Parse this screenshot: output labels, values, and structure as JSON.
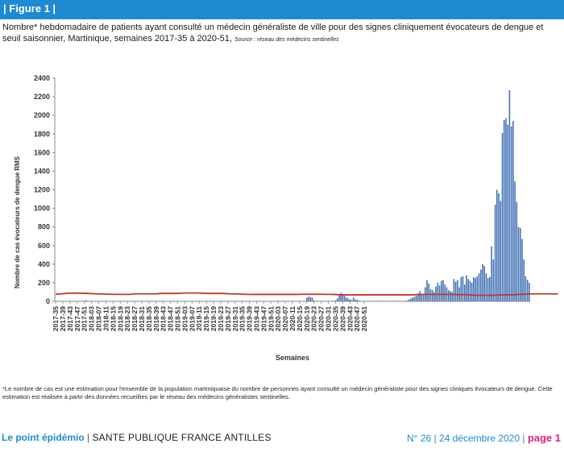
{
  "banner": {
    "label": "| Figure 1 |"
  },
  "caption": {
    "text": "Nombre* hebdomadaire de patients ayant consulté un médecin généraliste de ville pour des signes cliniquement évocateurs de dengue et seuil saisonnier, Martinique, semaines 2017-35 à 2020-51, ",
    "source": "Source : réseau des médecins sentinelles"
  },
  "colors": {
    "bars": "#3f6fb5",
    "threshold": "#c0392b",
    "accent": "#1f8ad0",
    "page": "#e0217a"
  },
  "chart_data": {
    "type": "bar",
    "title": "",
    "xlabel": "Semaines",
    "ylabel": "Nombre de cas évocateurs de dengue RMS",
    "ylim": [
      0,
      2400
    ],
    "yticks": [
      0,
      200,
      400,
      600,
      800,
      1000,
      1200,
      1400,
      1600,
      1800,
      2000,
      2200,
      2400
    ],
    "grid": false,
    "x_tick_labels": [
      "2017-35",
      "2017-39",
      "2017-43",
      "2017-47",
      "2017-51",
      "2018-03",
      "2018-07",
      "2018-11",
      "2018-15",
      "2018-19",
      "2018-23",
      "2018-27",
      "2018-31",
      "2018-35",
      "2018-39",
      "2018-43",
      "2018-47",
      "2018-51",
      "2019-03",
      "2019-07",
      "2019-11",
      "2019-15",
      "2019-19",
      "2019-23",
      "2019-27",
      "2019-31",
      "2019-35",
      "2019-39",
      "2019-43",
      "2019-47",
      "2019-51",
      "2020-03",
      "2020-07",
      "2020-11",
      "2020-15",
      "2020-19",
      "2020-23",
      "2020-27",
      "2020-31",
      "2020-35",
      "2020-39",
      "2020-43",
      "2020-47",
      "2020-51"
    ],
    "series": [
      {
        "kind": "bar",
        "values": [
          5,
          5,
          5,
          5,
          5,
          5,
          5,
          5,
          5,
          5,
          5,
          5,
          5,
          5,
          5,
          5,
          5,
          10,
          5,
          5,
          5,
          5,
          5,
          5,
          5,
          5,
          5,
          5,
          5,
          5,
          5,
          5,
          5,
          5,
          5,
          5,
          5,
          5,
          5,
          5,
          5,
          5,
          5,
          5,
          5,
          5,
          5,
          5,
          5,
          5,
          5,
          5,
          5,
          5,
          5,
          5,
          5,
          5,
          5,
          5,
          5,
          5,
          5,
          5,
          5,
          5,
          5,
          5,
          5,
          5,
          5,
          5,
          5,
          5,
          5,
          5,
          5,
          5,
          5,
          5,
          5,
          5,
          5,
          5,
          5,
          5,
          5,
          5,
          5,
          5,
          5,
          5,
          5,
          5,
          5,
          5,
          5,
          5,
          5,
          5,
          5,
          5,
          5,
          5,
          5,
          5,
          5,
          5,
          5,
          5,
          5,
          5,
          5,
          5,
          5,
          5,
          5,
          5,
          5,
          5,
          5,
          5,
          5,
          5,
          5,
          5,
          5,
          5,
          5,
          5,
          5,
          5,
          5,
          5,
          5,
          5,
          5,
          5,
          5,
          5,
          40,
          50,
          45,
          40,
          10,
          5,
          5,
          5,
          5,
          5,
          5,
          5,
          5,
          5,
          5,
          5,
          10,
          30,
          60,
          90,
          80,
          60,
          40,
          30,
          20,
          15,
          40,
          20,
          15,
          10,
          5,
          5,
          5,
          5,
          5,
          5,
          5,
          5,
          5,
          5,
          5,
          5,
          5,
          5,
          5,
          5,
          5,
          5,
          5,
          5,
          5,
          5,
          5,
          5,
          5,
          5,
          10,
          20,
          30,
          40,
          50,
          60,
          70,
          110,
          70,
          80,
          150,
          230,
          190,
          130,
          120,
          100,
          160,
          200,
          170,
          220,
          230,
          180,
          150,
          120,
          110,
          100,
          240,
          210,
          230,
          150,
          260,
          270,
          180,
          280,
          240,
          220,
          200,
          260,
          250,
          270,
          300,
          340,
          400,
          380,
          300,
          250,
          260,
          590,
          450,
          1040,
          1200,
          1160,
          1080,
          1810,
          1950,
          1970,
          1900,
          2270,
          1880,
          1940,
          1290,
          1070,
          800,
          790,
          670,
          450,
          270,
          230,
          200
        ]
      },
      {
        "kind": "line",
        "values": [
          78,
          78,
          78,
          80,
          82,
          84,
          86,
          88,
          88,
          88,
          88,
          88,
          88,
          88,
          88,
          86,
          86,
          86,
          85,
          84,
          83,
          82,
          82,
          80,
          80,
          80,
          79,
          79,
          78,
          77,
          77,
          76,
          75,
          75,
          75,
          75,
          75,
          75,
          75,
          75,
          75,
          75,
          76,
          78,
          80,
          80,
          80,
          80,
          80,
          80,
          80,
          80,
          80,
          80,
          80,
          80,
          81,
          82,
          84,
          85,
          85,
          85,
          85,
          85,
          85,
          85,
          85,
          85,
          86,
          87,
          88,
          89,
          90,
          90,
          90,
          90,
          90,
          90,
          90,
          90,
          89,
          88,
          87,
          86,
          86,
          85,
          85,
          85,
          85,
          85,
          85,
          85,
          85,
          85,
          84,
          83,
          82,
          81,
          80,
          80,
          80,
          80,
          79,
          78,
          76,
          76,
          76,
          75,
          75,
          74,
          74,
          74,
          74,
          74,
          74,
          74,
          74,
          74,
          74,
          74,
          74,
          74,
          74,
          74,
          74,
          74,
          74,
          74,
          74,
          74,
          74,
          74,
          74,
          74,
          74,
          75,
          76,
          76,
          76,
          76,
          76,
          76,
          76,
          76,
          76,
          76,
          76,
          76,
          76,
          76,
          76,
          75,
          75,
          75,
          75,
          74,
          73,
          72,
          71,
          70,
          70,
          70,
          70,
          70,
          70,
          70,
          70,
          70,
          70,
          70,
          70,
          70,
          70,
          70,
          70,
          70,
          70,
          70,
          70,
          70,
          70,
          70,
          70,
          70,
          70,
          70,
          70,
          70,
          70,
          70,
          70,
          70,
          70,
          70,
          70,
          70,
          70,
          70,
          70,
          70,
          71,
          72,
          73,
          74,
          75,
          75,
          75,
          75,
          75,
          75,
          75,
          75,
          75,
          75,
          75,
          75,
          75,
          75,
          75,
          75,
          75,
          74,
          73,
          72,
          72,
          72,
          72,
          72,
          72,
          71,
          70,
          69,
          68,
          67,
          66,
          65,
          65,
          65,
          65,
          65,
          65,
          65,
          65,
          65,
          65,
          66,
          67,
          68,
          69,
          70,
          70,
          70,
          70,
          70,
          70,
          71,
          72,
          73,
          74,
          75,
          76,
          77,
          78,
          79,
          80,
          80,
          80,
          80,
          80,
          80,
          80,
          80,
          80,
          80,
          80,
          80,
          80,
          80,
          80,
          80,
          80
        ]
      }
    ]
  },
  "footnote": {
    "text": "*Le nombre de cas est une estimation pour l'ensemble de la population martiniquaise du nombre de personnes ayant consulté un médecin généraliste pour des signes cliniques évocateurs de dengue. Cette estimation est réalisée à partir des données recueillies par le réseau des médecins généralistes sentinelles."
  },
  "footer": {
    "brand": "Le point épidémio",
    "separator": " | ",
    "org": "SANTE PUBLIQUE FRANCE ANTILLES",
    "issue": "N° 26 |  24 décembre 2020 | ",
    "page": "page 1"
  }
}
